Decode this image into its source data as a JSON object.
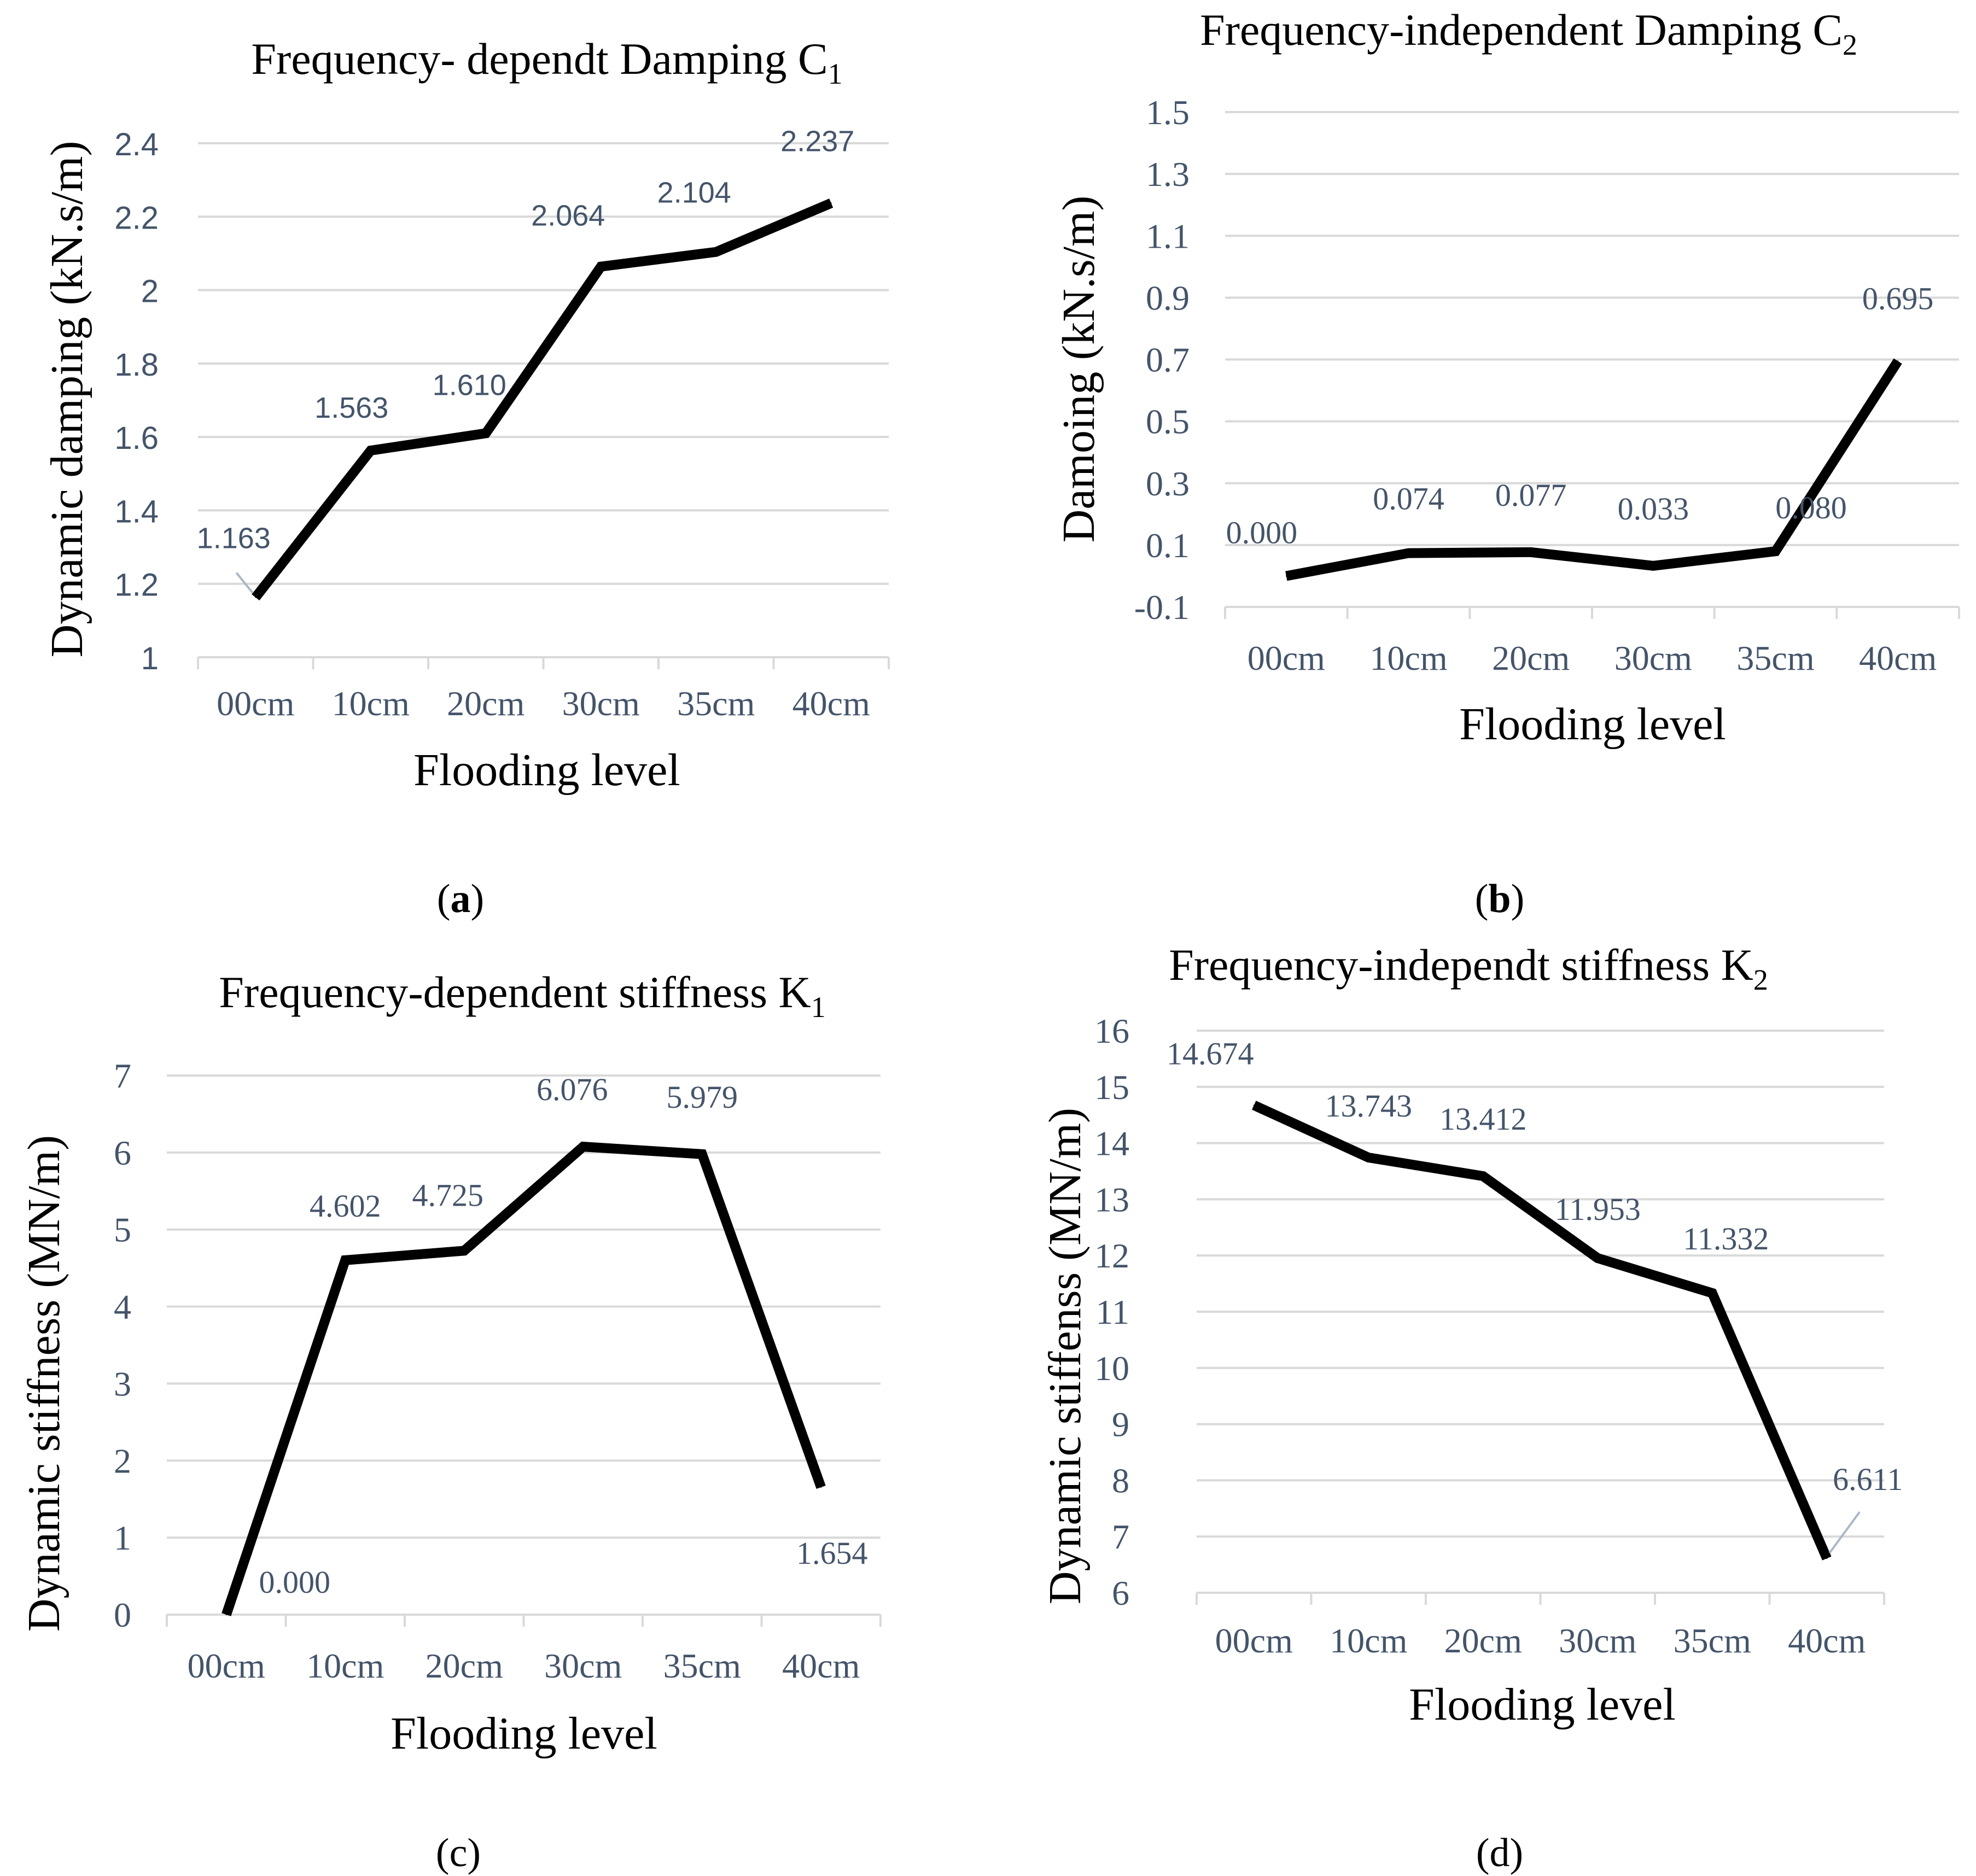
{
  "figure": {
    "panels": [
      {
        "letter": "a"
      },
      {
        "letter": "b"
      },
      {
        "letter": "c"
      },
      {
        "letter": "d"
      }
    ]
  },
  "chart_data": [
    {
      "panel": "a",
      "type": "line",
      "title": "Frequency- dependt Damping C",
      "title_subscript": "1",
      "xlabel": "Flooding level",
      "ylabel": "Dynamic damping (kN.s/m)",
      "categories": [
        "00cm",
        "10cm",
        "20cm",
        "30cm",
        "35cm",
        "40cm"
      ],
      "series": [
        {
          "name": "C1",
          "values": [
            1.163,
            1.563,
            1.61,
            2.064,
            2.104,
            2.237
          ]
        }
      ],
      "data_labels": [
        "1.163",
        "1.563",
        "1.610",
        "2.064",
        "2.104",
        "2.237"
      ],
      "ylim": [
        1,
        2.4
      ],
      "yticks": [
        "1",
        "1.2",
        "1.4",
        "1.6",
        "1.8",
        "2",
        "2.2",
        "2.4"
      ],
      "grid": true
    },
    {
      "panel": "b",
      "type": "line",
      "title": "Frequency-independent Damping C",
      "title_subscript": "2",
      "xlabel": "Flooding level",
      "ylabel": "Damoing (kN.s/m)",
      "categories": [
        "00cm",
        "10cm",
        "20cm",
        "30cm",
        "35cm",
        "40cm"
      ],
      "series": [
        {
          "name": "C2",
          "values": [
            0.0,
            0.074,
            0.077,
            0.033,
            0.08,
            0.695
          ]
        }
      ],
      "data_labels": [
        "0.000",
        "0.074",
        "0.077",
        "0.033",
        "0.080",
        "0.695"
      ],
      "ylim": [
        -0.1,
        1.5
      ],
      "yticks": [
        "-0.1",
        "0.1",
        "0.3",
        "0.5",
        "0.7",
        "0.9",
        "1.1",
        "1.3",
        "1.5"
      ],
      "grid": true
    },
    {
      "panel": "c",
      "type": "line",
      "title": "Frequency-dependent stiffness K",
      "title_subscript": "1",
      "xlabel": "Flooding level",
      "ylabel": "Dynamic stiffness (MN/m)",
      "categories": [
        "00cm",
        "10cm",
        "20cm",
        "30cm",
        "35cm",
        "40cm"
      ],
      "series": [
        {
          "name": "K1",
          "values": [
            0.0,
            4.602,
            4.725,
            6.076,
            5.979,
            1.654
          ]
        }
      ],
      "data_labels": [
        "0.000",
        "4.602",
        "4.725",
        "6.076",
        "5.979",
        "1.654"
      ],
      "ylim": [
        0,
        7
      ],
      "yticks": [
        "0",
        "1",
        "2",
        "3",
        "4",
        "5",
        "6",
        "7"
      ],
      "grid": true
    },
    {
      "panel": "d",
      "type": "line",
      "title": "Frequency-independt stiffness K",
      "title_subscript": "2",
      "xlabel": "Flooding level",
      "ylabel": "Dynamic stiffenss (MN/m)",
      "categories": [
        "00cm",
        "10cm",
        "20cm",
        "30cm",
        "35cm",
        "40cm"
      ],
      "series": [
        {
          "name": "K2",
          "values": [
            14.674,
            13.743,
            13.412,
            11.953,
            11.332,
            6.611
          ]
        }
      ],
      "data_labels": [
        "14.674",
        "13.743",
        "13.412",
        "11.953",
        "11.332",
        "6.611"
      ],
      "ylim": [
        6,
        16
      ],
      "yticks": [
        "6",
        "7",
        "8",
        "9",
        "10",
        "11",
        "12",
        "13",
        "14",
        "15",
        "16"
      ],
      "grid": true
    }
  ]
}
